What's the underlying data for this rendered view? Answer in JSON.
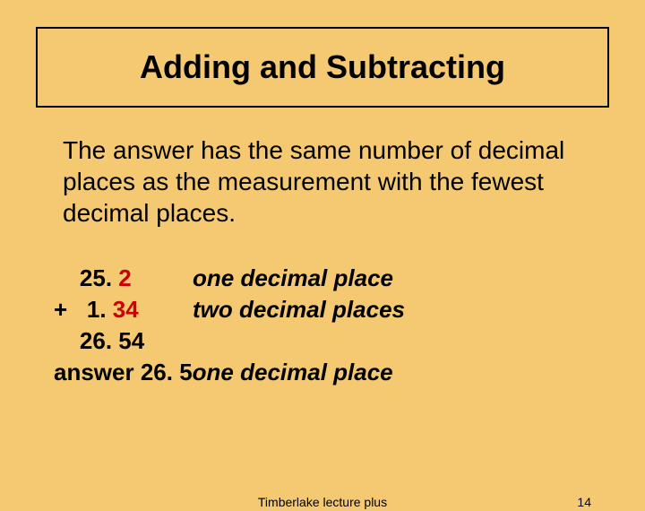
{
  "title": "Adding and Subtracting",
  "rule_text": "The answer has the same number of decimal places as the measurement with the fewest decimal places.",
  "example": {
    "line1": {
      "prefix": "    25. ",
      "redpart": "2",
      "label": "one decimal place"
    },
    "line2": {
      "prefix": "+   1. ",
      "redpart": "34",
      "label": "two decimal places"
    },
    "line3": {
      "prefix": "    26. 54"
    },
    "line4": {
      "prefix": "answer 26. 5  ",
      "label": "one decimal place"
    }
  },
  "footer": {
    "center": "Timberlake lecture plus",
    "page": "14"
  },
  "colors": {
    "background": "#f4c972",
    "red": "#cc0000",
    "text": "#000000",
    "border": "#000000"
  },
  "fonts": {
    "title_size": 36,
    "body_size": 28,
    "example_size": 26,
    "footer_size": 14
  }
}
